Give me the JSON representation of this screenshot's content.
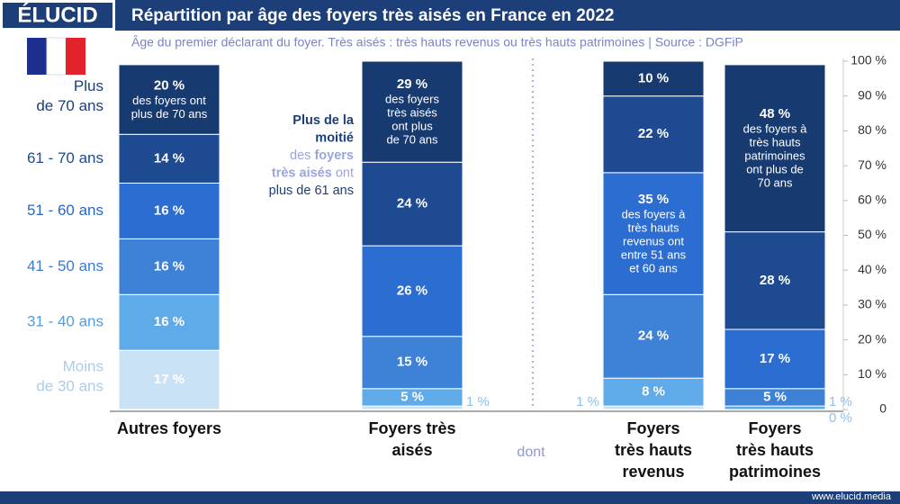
{
  "header": {
    "logo": "ÉLUCID",
    "title": "Répartition par âge des foyers très aisés en France en 2022"
  },
  "footer": "www.elucid.media",
  "chart_data": {
    "type": "stacked_bar",
    "subtitle": "Âge du premier déclarant du foyer. Très aisés : très hauts revenus ou très hauts patrimoines  |  Source : DGFiP",
    "categories": [
      [
        "Autres foyers"
      ],
      [
        "Foyers très",
        "aisés"
      ],
      [
        "Foyers",
        "très hauts",
        "revenus"
      ],
      [
        "Foyers",
        "très hauts",
        "patrimoines"
      ]
    ],
    "series": [
      {
        "name": [
          "Moins",
          "de 30 ans"
        ],
        "color": "#c9e2f6",
        "label_color": "#a9cdee",
        "values": [
          17,
          1,
          1,
          0
        ],
        "value_labels": [
          "17 %",
          "1 %",
          "1 %",
          "0 %"
        ]
      },
      {
        "name": [
          "31 - 40 ans"
        ],
        "color": "#5fabe9",
        "label_color": "#4f9fe2",
        "values": [
          16,
          5,
          8,
          1
        ],
        "value_labels": [
          "16 %",
          "5 %",
          "8 %",
          "1 %"
        ]
      },
      {
        "name": [
          "41 - 50 ans"
        ],
        "color": "#3e82d8",
        "label_color": "#3a7bd2",
        "values": [
          16,
          15,
          24,
          5
        ],
        "value_labels": [
          "16 %",
          "15 %",
          "24 %",
          "5 %"
        ]
      },
      {
        "name": [
          "51 - 60 ans"
        ],
        "color": "#2b6dd0",
        "label_color": "#2867c6",
        "values": [
          16,
          26,
          35,
          17
        ],
        "value_labels": [
          "16 %",
          "26 %",
          "35 %",
          "17 %"
        ],
        "notes": [
          null,
          null,
          [
            "des foyers à",
            "très hauts",
            "revenus ont",
            "entre 51 ans",
            "et 60 ans"
          ],
          null
        ]
      },
      {
        "name": [
          "61 - 70 ans"
        ],
        "color": "#1d4a90",
        "label_color": "#1d4a90",
        "values": [
          14,
          24,
          22,
          28
        ],
        "value_labels": [
          "14 %",
          "24 %",
          "22 %",
          "28 %"
        ]
      },
      {
        "name": [
          "Plus",
          "de 70 ans"
        ],
        "color": "#173a70",
        "label_color": "#1c3f7a",
        "values": [
          20,
          29,
          10,
          48
        ],
        "value_labels": [
          "20 %",
          "29 %",
          "10 %",
          "48 %"
        ],
        "notes": [
          [
            "des foyers ont",
            "plus de 70 ans"
          ],
          [
            "des foyers",
            "très aisés",
            "ont plus",
            "de 70 ans"
          ],
          null,
          [
            "des foyers à",
            "très hauts",
            "patrimoines",
            "ont plus de",
            "70 ans"
          ]
        ]
      }
    ],
    "annotation": [
      [
        "Plus de la"
      ],
      [
        "moitié"
      ],
      [
        "des ",
        "foyers"
      ],
      [
        "très aisés",
        " ont"
      ],
      [
        "plus de 61 ans"
      ]
    ],
    "divider_label": "dont",
    "ylim": [
      0,
      100
    ],
    "yticks": [
      {
        "value": 0,
        "label": "0"
      },
      {
        "value": 10,
        "label": "10 %"
      },
      {
        "value": 20,
        "label": "20 %"
      },
      {
        "value": 30,
        "label": "30 %"
      },
      {
        "value": 40,
        "label": "40 %"
      },
      {
        "value": 50,
        "label": "50 %"
      },
      {
        "value": 60,
        "label": "60 %"
      },
      {
        "value": 70,
        "label": "70 %"
      },
      {
        "value": 80,
        "label": "80 %"
      },
      {
        "value": 90,
        "label": "90 %"
      },
      {
        "value": 100,
        "label": "100 %"
      }
    ]
  }
}
